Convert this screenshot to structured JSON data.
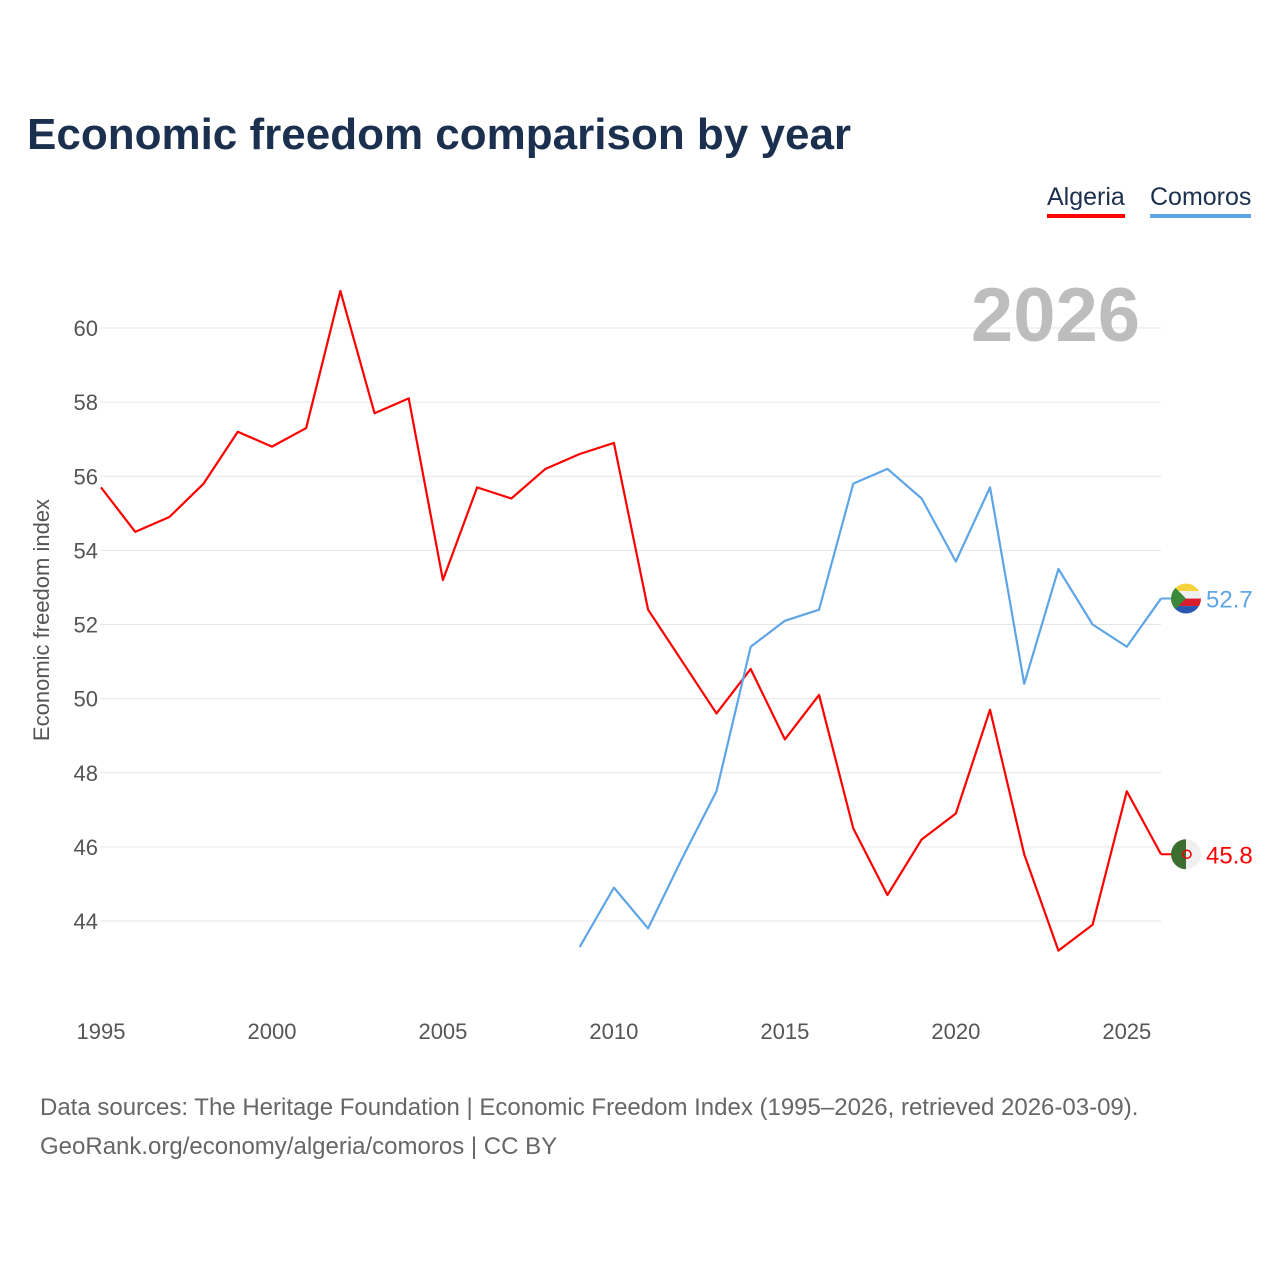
{
  "chart_data": {
    "type": "line",
    "title": "Economic freedom comparison by year",
    "ylabel": "Economic freedom index",
    "xlabel": "",
    "xlim": [
      1995,
      2026
    ],
    "ylim": [
      42,
      61.5
    ],
    "yticks": [
      44,
      46,
      48,
      50,
      52,
      54,
      56,
      58,
      60
    ],
    "xticks": [
      1995,
      2000,
      2005,
      2010,
      2015,
      2020,
      2025
    ],
    "grid": true,
    "legend_position": "top-right",
    "current_year_label": "2026",
    "series": [
      {
        "name": "Algeria",
        "color": "#ff0000",
        "end_label": "45.8",
        "x": [
          1995,
          1996,
          1997,
          1998,
          1999,
          2000,
          2001,
          2002,
          2003,
          2004,
          2005,
          2006,
          2007,
          2008,
          2009,
          2010,
          2011,
          2012,
          2013,
          2014,
          2015,
          2016,
          2017,
          2018,
          2019,
          2020,
          2021,
          2022,
          2023,
          2024,
          2025,
          2026
        ],
        "values": [
          55.7,
          54.5,
          54.9,
          55.8,
          57.2,
          56.8,
          57.3,
          61.0,
          57.7,
          58.1,
          53.2,
          55.7,
          55.4,
          56.2,
          56.6,
          56.9,
          52.4,
          51.0,
          49.6,
          50.8,
          48.9,
          50.1,
          46.5,
          44.7,
          46.2,
          46.9,
          49.7,
          45.8,
          43.2,
          43.9,
          47.5,
          45.8
        ]
      },
      {
        "name": "Comoros",
        "color": "#5ea5e8",
        "end_label": "52.7",
        "x": [
          2009,
          2010,
          2011,
          2012,
          2013,
          2014,
          2015,
          2016,
          2017,
          2018,
          2019,
          2020,
          2021,
          2022,
          2023,
          2024,
          2025,
          2026
        ],
        "values": [
          43.3,
          44.9,
          43.8,
          45.7,
          47.5,
          51.4,
          52.1,
          52.4,
          55.8,
          56.2,
          55.4,
          53.7,
          55.7,
          50.4,
          53.5,
          52.0,
          51.4,
          52.7
        ]
      }
    ]
  },
  "source_line1": "Data sources: The Heritage Foundation | Economic Freedom Index (1995–2026, retrieved 2026-03-09).",
  "source_line2": "GeoRank.org/economy/algeria/comoros | CC BY"
}
